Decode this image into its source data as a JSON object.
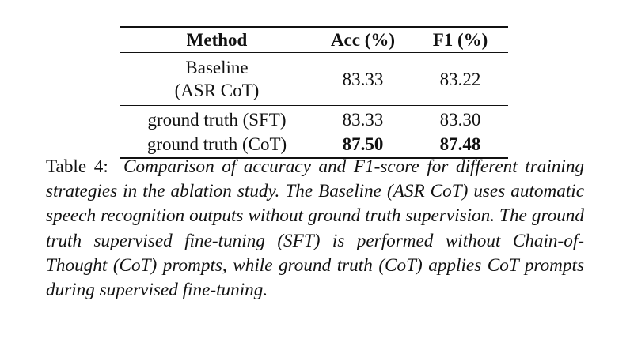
{
  "table": {
    "headers": {
      "method": "Method",
      "acc": "Acc (%)",
      "f1": "F1 (%)"
    },
    "rows": [
      {
        "method_line1": "Baseline",
        "method_line2": "(ASR CoT)",
        "acc": "83.33",
        "f1": "83.22"
      },
      {
        "method": "ground truth (SFT)",
        "acc": "83.33",
        "f1": "83.30"
      },
      {
        "method": "ground truth (CoT)",
        "acc": "87.50",
        "f1": "87.48"
      }
    ]
  },
  "caption": {
    "label": "Table 4:",
    "text": "Comparison of accuracy and F1-score for different training strategies in the ablation study. The Baseline (ASR CoT) uses automatic speech recognition outputs without ground truth supervision. The ground truth supervised fine-tuning (SFT) is performed without Chain-of-Thought (CoT) prompts, while ground truth (CoT) applies CoT prompts during super­vised fine-tuning."
  }
}
